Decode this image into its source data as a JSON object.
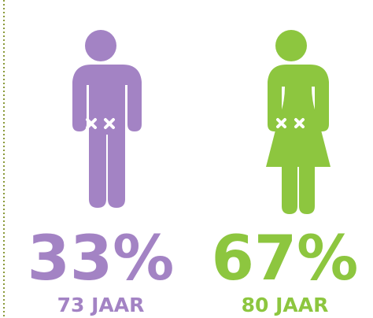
{
  "figures": [
    {
      "percent": "33%",
      "age": "73 JAAR"
    },
    {
      "percent": "67%",
      "age": "80 JAAR"
    }
  ]
}
